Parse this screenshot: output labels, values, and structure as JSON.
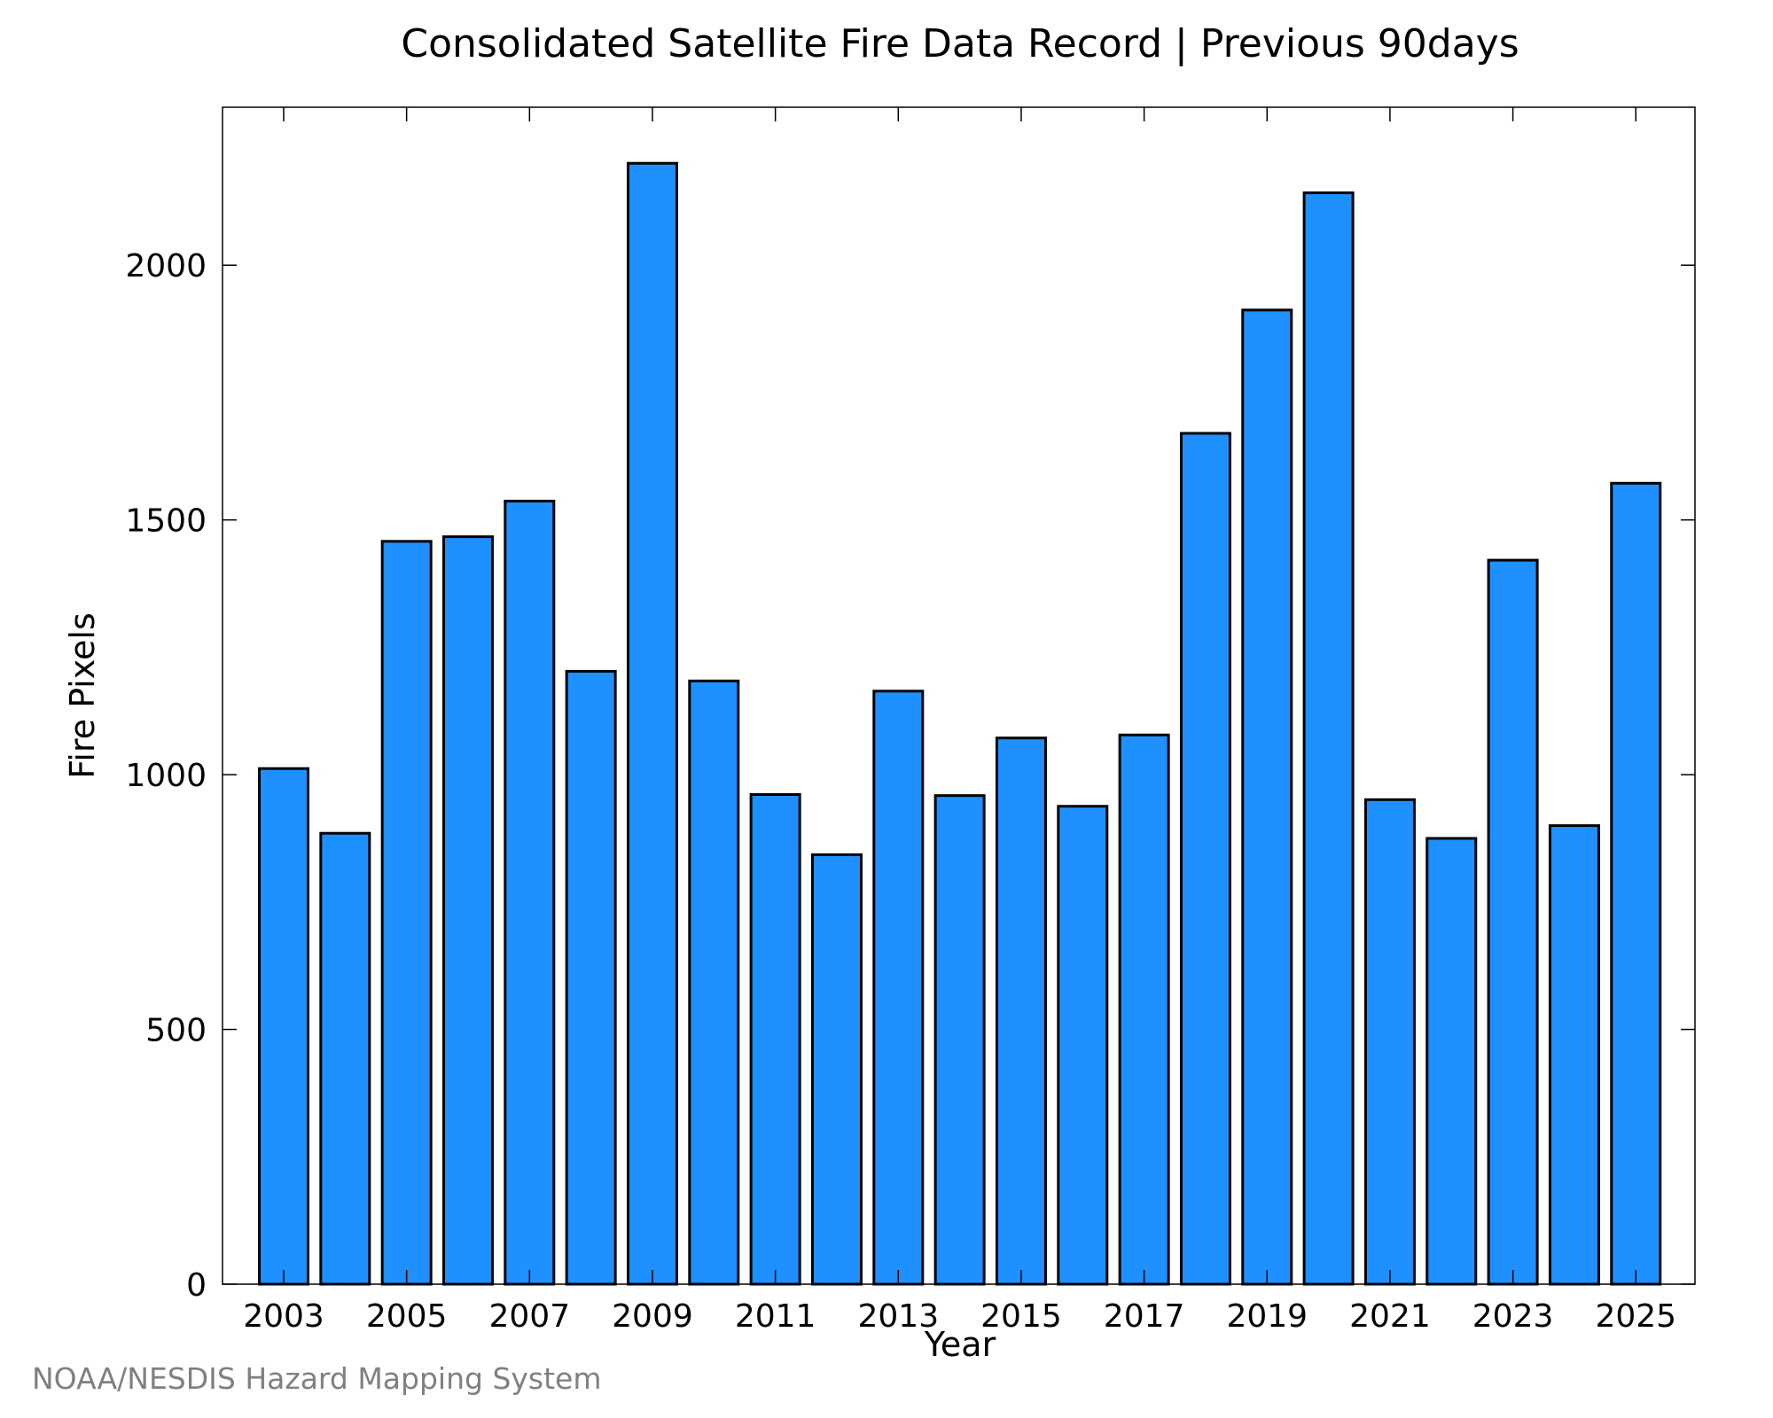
{
  "chart_data": {
    "type": "bar",
    "title": "Consolidated Satellite Fire Data Record | Previous 90days",
    "xlabel": "Year",
    "ylabel": "Fire Pixels",
    "categories": [
      "2003",
      "2004",
      "2005",
      "2006",
      "2007",
      "2008",
      "2009",
      "2010",
      "2011",
      "2012",
      "2013",
      "2014",
      "2015",
      "2016",
      "2017",
      "2018",
      "2019",
      "2020",
      "2021",
      "2022",
      "2023",
      "2024",
      "2025"
    ],
    "values": [
      1012,
      885,
      1458,
      1467,
      1537,
      1203,
      2200,
      1184,
      961,
      843,
      1164,
      959,
      1072,
      938,
      1078,
      1670,
      1912,
      2142,
      951,
      875,
      1421,
      900,
      1572
    ],
    "x_tick_labels": [
      "2003",
      "2005",
      "2007",
      "2009",
      "2011",
      "2013",
      "2015",
      "2017",
      "2019",
      "2021",
      "2023",
      "2025"
    ],
    "y_tick_labels": [
      "0",
      "500",
      "1000",
      "1500",
      "2000"
    ],
    "y_ticks": [
      0,
      500,
      1000,
      1500,
      2000
    ],
    "ylim": [
      0,
      2310
    ],
    "grid": false,
    "bar_color": "#1e90ff",
    "bar_edge_color": "#000000"
  },
  "credit": "NOAA/NESDIS Hazard Mapping System"
}
